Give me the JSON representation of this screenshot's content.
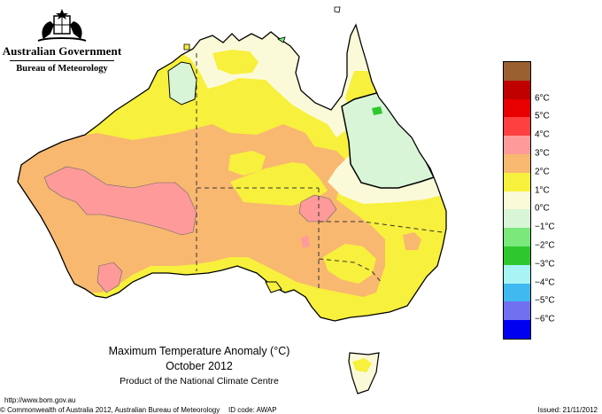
{
  "header": {
    "government": "Australian Government",
    "bureau": "Bureau of Meteorology"
  },
  "legend": {
    "items": [
      {
        "label": "",
        "color": "#9b6030"
      },
      {
        "label": "6°C",
        "color": "#c00000"
      },
      {
        "label": "5°C",
        "color": "#e80000"
      },
      {
        "label": "4°C",
        "color": "#ff4040"
      },
      {
        "label": "3°C",
        "color": "#ff9a9a"
      },
      {
        "label": "2°C",
        "color": "#f8b870"
      },
      {
        "label": "1°C",
        "color": "#f7f03c"
      },
      {
        "label": "0°C",
        "color": "#fbfad8"
      },
      {
        "label": "−1°C",
        "color": "#d8f5d8"
      },
      {
        "label": "−2°C",
        "color": "#7ae87a"
      },
      {
        "label": "−3°C",
        "color": "#2ec82e"
      },
      {
        "label": "−4°C",
        "color": "#a8f4f4"
      },
      {
        "label": "−5°C",
        "color": "#40b8f0"
      },
      {
        "label": "−6°C",
        "color": "#7070f0"
      },
      {
        "label": "",
        "color": "#0000f0"
      }
    ]
  },
  "caption": {
    "title": "Maximum Temperature Anomaly (°C)",
    "month": "October 2012",
    "product": "Product of the National Climate Centre"
  },
  "footer": {
    "url": "http://www.bom.gov.au",
    "copyright": "© Commonwealth of Australia 2012, Australian Bureau of Meteorology",
    "id_code": "ID code: AWAP",
    "issued": "Issued: 21/11/2012"
  },
  "map": {
    "zones": [
      {
        "name": "cool anomaly",
        "color": "#d8f5d8"
      },
      {
        "name": "neutral",
        "color": "#fbfad8"
      },
      {
        "name": "1 to 2",
        "color": "#f7f03c"
      },
      {
        "name": "2 to 3",
        "color": "#f8b870"
      },
      {
        "name": "3 to 4",
        "color": "#ff9a9a"
      }
    ]
  }
}
